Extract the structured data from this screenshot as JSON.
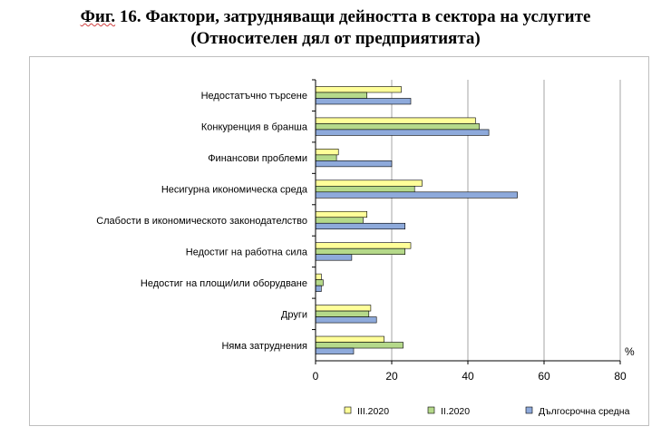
{
  "title": {
    "fig_label": "Фиг.",
    "line1": " 16. Фактори, затрудняващи дейността в сектора на услугите",
    "line2": "(Относителен дял от предприятията)"
  },
  "chart_data": {
    "type": "bar",
    "orientation": "horizontal",
    "categories": [
      "Недостатъчно търсене",
      "Конкуренция в бранша",
      "Финансови проблеми",
      "Несигурна икономическа среда",
      "Слабости в икономическото законодателство",
      "Недостиг на работна сила",
      "Недостиг на площи/или оборудване",
      "Други",
      "Няма затруднения"
    ],
    "series": [
      {
        "name": "III.2020",
        "color": "#ffff99",
        "values": [
          22.5,
          42,
          6,
          28,
          13.5,
          25,
          1.5,
          14.5,
          18
        ]
      },
      {
        "name": "II.2020",
        "color": "#b5d98a",
        "values": [
          13.5,
          43,
          5.5,
          26,
          12.5,
          23.5,
          2,
          14,
          23
        ]
      },
      {
        "name": "Дългосрочна средна",
        "color": "#8eaadb",
        "values": [
          25,
          45.5,
          20,
          53,
          23.5,
          9.5,
          1.5,
          16,
          10
        ]
      }
    ],
    "xlim": [
      0,
      80
    ],
    "xticks": [
      "0",
      "20",
      "40",
      "60",
      "80"
    ],
    "unit_label": "%",
    "legend_position": "bottom",
    "grid": "vertical"
  }
}
